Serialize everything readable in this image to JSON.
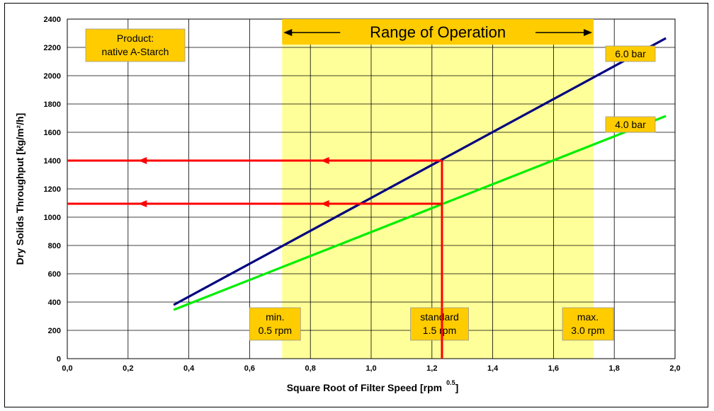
{
  "chart_data": {
    "type": "line",
    "xlabel": "Square Root of Filter Speed [rpm",
    "xlabel_exponent": "0.5",
    "xlabel_suffix": "]",
    "ylabel": "Dry Solids Throughput [kg/m²/h]",
    "xlim": [
      0,
      2.0
    ],
    "ylim": [
      0,
      2400
    ],
    "x_ticks": [
      0.0,
      0.2,
      0.4,
      0.6,
      0.8,
      1.0,
      1.2,
      1.4,
      1.6,
      1.8,
      2.0
    ],
    "x_tick_labels": [
      "0,0",
      "0,2",
      "0,4",
      "0,6",
      "0,8",
      "1,0",
      "1,2",
      "1,4",
      "1,6",
      "1,8",
      "2,0"
    ],
    "y_ticks": [
      0,
      200,
      400,
      600,
      800,
      1000,
      1200,
      1400,
      1600,
      1800,
      2000,
      2200,
      2400
    ],
    "y_tick_labels": [
      "0",
      "200",
      "400",
      "600",
      "800",
      "1000",
      "1200",
      "1400",
      "1600",
      "1800",
      "2000",
      "2200",
      "2400"
    ],
    "grid": true,
    "series": [
      {
        "name": "6.0 bar",
        "color": "#000080",
        "x": [
          0.35,
          1.97
        ],
        "y": [
          380,
          2265
        ]
      },
      {
        "name": "4.0 bar",
        "color": "#00ee00",
        "x": [
          0.35,
          1.97
        ],
        "y": [
          345,
          1715
        ]
      }
    ],
    "operating_range": {
      "label": "Range of Operation",
      "x_start": 0.707,
      "x_end": 1.732,
      "color": "#ffff99",
      "banner_color": "#ffcc00"
    },
    "markers": [
      {
        "label_line1": "min.",
        "label_line2": "0.5 rpm",
        "x": 0.707
      },
      {
        "label_line1": "standard",
        "label_line2": "1.5 rpm",
        "x": 1.225
      },
      {
        "label_line1": "max.",
        "label_line2": "3.0 rpm",
        "x": 1.732
      }
    ],
    "readout": {
      "x": 1.233,
      "y_values": [
        1400,
        1095
      ],
      "color": "#ff0000"
    },
    "product_note": {
      "line1": "Product:",
      "line2": "native A-Starch"
    }
  }
}
